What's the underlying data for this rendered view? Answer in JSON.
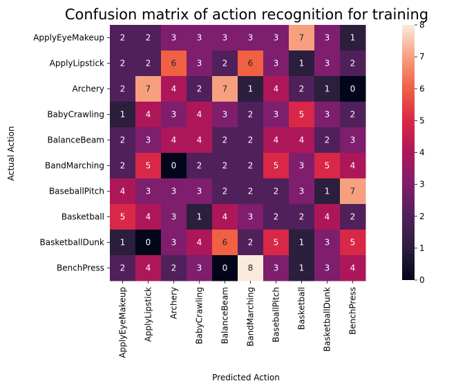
{
  "chart_data": {
    "type": "heatmap",
    "title": "Confusion matrix of action recognition for training",
    "xlabel": "Predicted Action",
    "ylabel": "Actual Action",
    "categories": [
      "ApplyEyeMakeup",
      "ApplyLipstick",
      "Archery",
      "BabyCrawling",
      "BalanceBeam",
      "BandMarching",
      "BaseballPitch",
      "Basketball",
      "BasketballDunk",
      "BenchPress"
    ],
    "values": [
      [
        2,
        2,
        3,
        3,
        3,
        3,
        3,
        7,
        3,
        1
      ],
      [
        2,
        2,
        6,
        3,
        2,
        6,
        3,
        1,
        3,
        2
      ],
      [
        2,
        7,
        4,
        2,
        7,
        1,
        4,
        2,
        1,
        0
      ],
      [
        1,
        4,
        3,
        4,
        3,
        2,
        3,
        5,
        3,
        2
      ],
      [
        2,
        3,
        4,
        4,
        2,
        2,
        4,
        4,
        2,
        3
      ],
      [
        2,
        5,
        0,
        2,
        2,
        2,
        5,
        3,
        5,
        4
      ],
      [
        4,
        3,
        3,
        3,
        2,
        2,
        2,
        3,
        1,
        7
      ],
      [
        5,
        4,
        3,
        1,
        4,
        3,
        2,
        2,
        4,
        2
      ],
      [
        1,
        0,
        3,
        4,
        6,
        2,
        5,
        1,
        3,
        5
      ],
      [
        2,
        4,
        2,
        3,
        0,
        8,
        3,
        1,
        3,
        4
      ]
    ],
    "colorbar": {
      "range": [
        0,
        8
      ],
      "ticks": [
        "0",
        "1",
        "2",
        "3",
        "4",
        "5",
        "6",
        "7",
        "8"
      ]
    },
    "colors": {
      "low": "#03051a",
      "high": "#faebdd"
    }
  }
}
